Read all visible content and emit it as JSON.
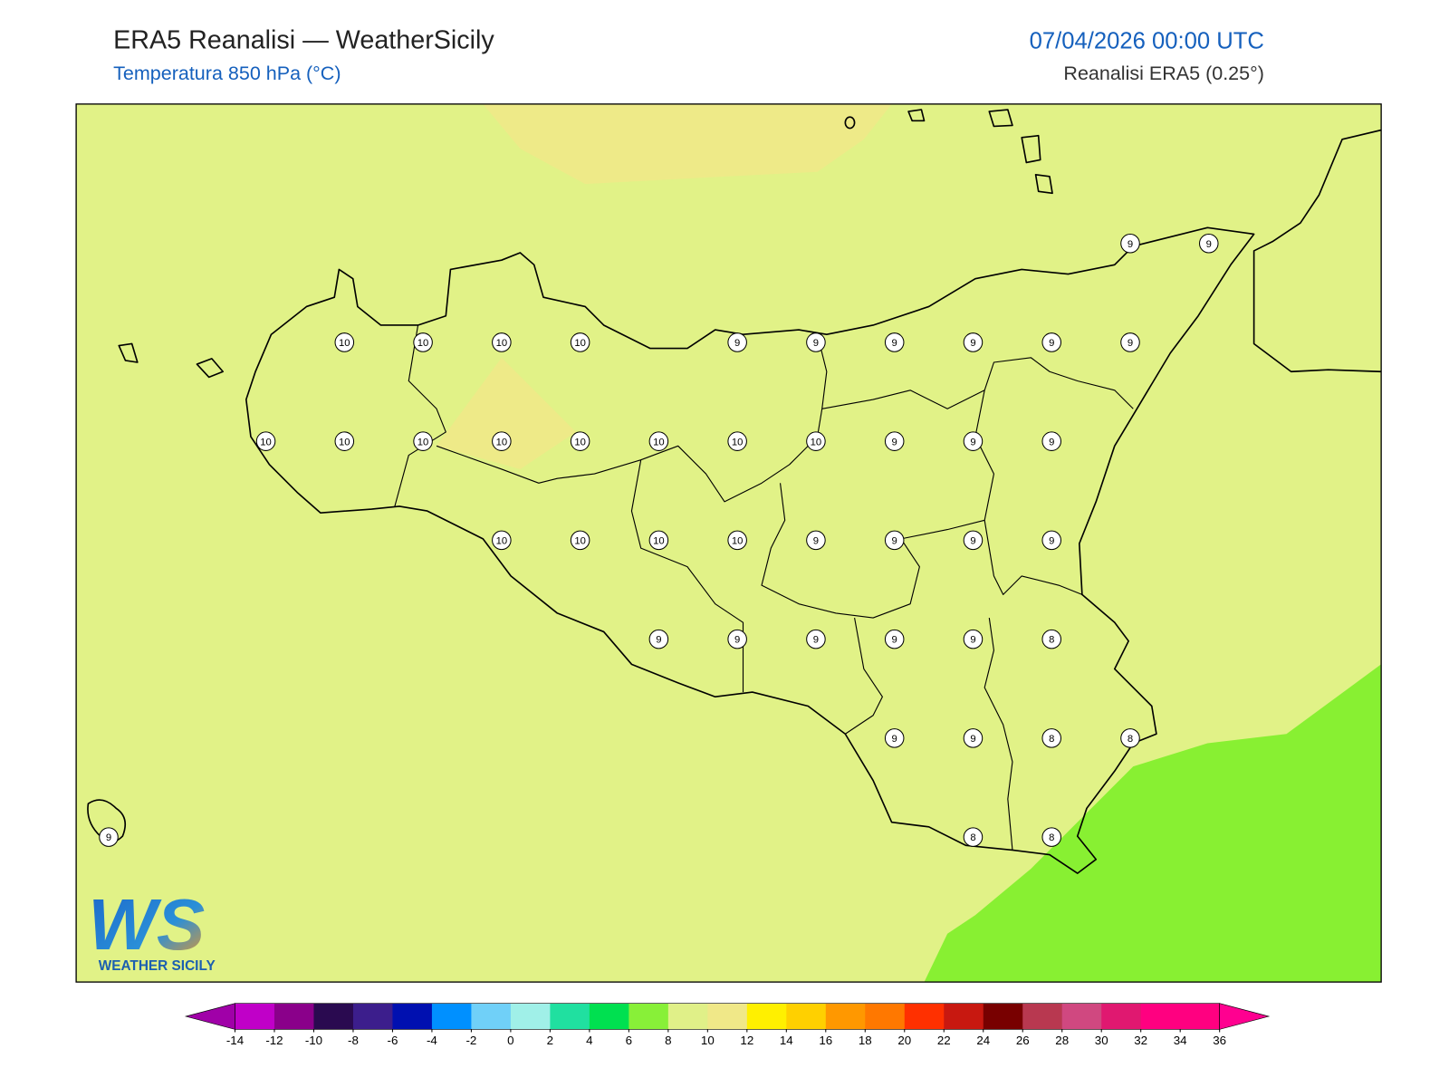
{
  "header": {
    "title": "ERA5 Reanalisi — WeatherSicily",
    "subtitle": "Temperatura 850 hPa (°C)",
    "datetime": "07/04/2026 00:00 UTC",
    "source": "Reanalisi ERA5 (0.25°)"
  },
  "map": {
    "background_color": "#e1f287",
    "warm_color": "#eeea88",
    "cool_color": "#88f032",
    "coast_color": "#000000"
  },
  "station_grid": [
    [
      null,
      null,
      null,
      null,
      null,
      null,
      null,
      null,
      null,
      null,
      null,
      null,
      null,
      9,
      9
    ],
    [
      null,
      null,
      null,
      10,
      10,
      10,
      10,
      null,
      9,
      9,
      9,
      9,
      9,
      9,
      null
    ],
    [
      null,
      null,
      10,
      10,
      10,
      10,
      10,
      10,
      10,
      10,
      9,
      9,
      9,
      null,
      null
    ],
    [
      null,
      null,
      null,
      null,
      null,
      10,
      10,
      10,
      10,
      9,
      9,
      9,
      9,
      null,
      null
    ],
    [
      null,
      null,
      null,
      null,
      null,
      null,
      null,
      9,
      9,
      9,
      9,
      9,
      8,
      null,
      null
    ],
    [
      null,
      null,
      null,
      null,
      null,
      null,
      null,
      null,
      null,
      null,
      9,
      9,
      8,
      8,
      null
    ],
    [
      9,
      null,
      null,
      null,
      null,
      null,
      null,
      null,
      null,
      null,
      null,
      8,
      8,
      null,
      null
    ]
  ],
  "colorbar": {
    "ticks": [
      -14,
      -12,
      -10,
      -8,
      -6,
      -4,
      -2,
      0,
      2,
      4,
      6,
      8,
      10,
      12,
      14,
      16,
      18,
      20,
      22,
      24,
      26,
      28,
      30,
      32,
      34,
      36
    ],
    "colors": [
      "#c000c8",
      "#8a008a",
      "#2a0a50",
      "#3c1e8c",
      "#0010b0",
      "#0090ff",
      "#70d0f8",
      "#a0f0e8",
      "#20e0a0",
      "#00e050",
      "#88f038",
      "#e0f088",
      "#f0e888",
      "#fff000",
      "#ffd000",
      "#ff9800",
      "#ff7800",
      "#ff3000",
      "#c81810",
      "#780000",
      "#b83850",
      "#d04880",
      "#e01870",
      "#ff0080",
      "#ff0080"
    ],
    "under_color": "#a000a8",
    "over_color": "#ff0090"
  },
  "logo": {
    "mark": "WS",
    "name": "WEATHER SICILY"
  }
}
